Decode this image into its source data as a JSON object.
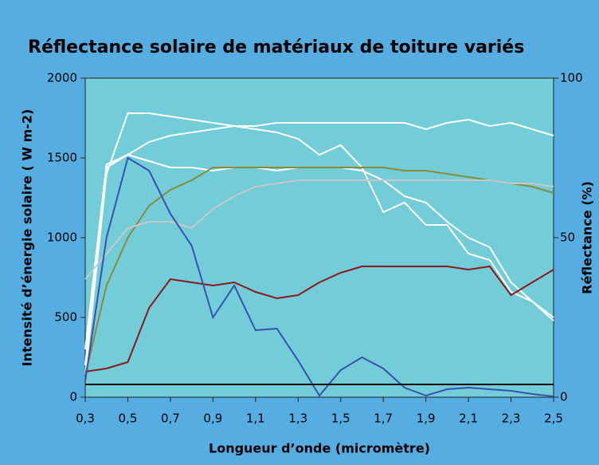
{
  "chart_data": {
    "type": "line",
    "title": "Réflectance solaire de matériaux de toiture variés",
    "ylabel": "Intensité d’énergie solaire  ( W m-2)",
    "y2label": "Réflectance  (%)",
    "xlabel": "Longueur d’onde (micromètre)",
    "x": [
      0.3,
      0.4,
      0.5,
      0.6,
      0.7,
      0.8,
      0.9,
      1.0,
      1.1,
      1.2,
      1.3,
      1.4,
      1.5,
      1.6,
      1.7,
      1.8,
      1.9,
      2.0,
      2.1,
      2.2,
      2.3,
      2.4,
      2.5
    ],
    "xlim": [
      0.3,
      2.5
    ],
    "xticks": [
      {
        "value": 0.3,
        "label": "0,3"
      },
      {
        "value": 0.5,
        "label": "0,5"
      },
      {
        "value": 0.7,
        "label": "0,7"
      },
      {
        "value": 0.9,
        "label": "0,9"
      },
      {
        "value": 1.1,
        "label": "1,1"
      },
      {
        "value": 1.3,
        "label": "1,3"
      },
      {
        "value": 1.5,
        "label": "1,5"
      },
      {
        "value": 1.7,
        "label": "1,7"
      },
      {
        "value": 1.9,
        "label": "1,9"
      },
      {
        "value": 2.1,
        "label": "2,1"
      },
      {
        "value": 2.3,
        "label": "2,3"
      },
      {
        "value": 2.5,
        "label": "2,5"
      }
    ],
    "ylim": [
      0,
      2000
    ],
    "yticks": [
      0,
      500,
      1000,
      1500,
      2000
    ],
    "y2lim": [
      0,
      100
    ],
    "y2ticks": [
      0,
      50,
      100
    ],
    "series": [
      {
        "color": "#ffffff",
        "axis": "y2",
        "values": [
          7,
          70,
          89,
          89,
          88,
          87,
          86,
          85,
          84,
          83,
          81,
          76,
          79,
          72,
          58,
          61,
          54,
          54,
          45,
          43,
          33,
          30,
          24
        ]
      },
      {
        "color": "#ffffff",
        "axis": "y2",
        "values": [
          10,
          72,
          76,
          80,
          82,
          83,
          84,
          85,
          85,
          86,
          86,
          86,
          86,
          86,
          86,
          86,
          84,
          86,
          87,
          85,
          86,
          84,
          82
        ]
      },
      {
        "color": "#ffffff",
        "axis": "y2",
        "values": [
          15,
          73,
          76,
          74,
          72,
          72,
          71,
          72,
          72,
          71,
          72,
          72,
          72,
          71,
          68,
          63,
          61,
          55,
          50,
          47,
          36,
          30,
          25
        ]
      },
      {
        "color": "#8a8a3a",
        "axis": "y2",
        "values": [
          7,
          35,
          50,
          60,
          65,
          68,
          72,
          72,
          72,
          72,
          72,
          72,
          72,
          72,
          72,
          71,
          71,
          70,
          69,
          68,
          67,
          66,
          64
        ]
      },
      {
        "color": "#c8c8c8",
        "axis": "y2",
        "values": [
          37,
          45,
          53,
          55,
          55,
          53,
          59,
          63,
          66,
          67,
          68,
          68,
          68,
          68,
          68,
          68,
          68,
          68,
          68,
          68,
          67,
          67,
          66
        ]
      },
      {
        "color": "#8b1a1a",
        "axis": "y2",
        "values": [
          8,
          9,
          11,
          28,
          37,
          36,
          35,
          36,
          33,
          31,
          32,
          36,
          39,
          41,
          41,
          41,
          41,
          41,
          40,
          41,
          32,
          36,
          40
        ]
      },
      {
        "color": "#3a4fb0",
        "values": [
          100,
          1000,
          1500,
          1420,
          1150,
          950,
          500,
          700,
          420,
          430,
          230,
          10,
          170,
          250,
          180,
          60,
          10,
          50,
          60,
          50,
          40,
          20,
          5
        ]
      },
      {
        "color": "#000000",
        "axis": "y2",
        "values": [
          4,
          4,
          4,
          4,
          4,
          4,
          4,
          4,
          4,
          4,
          4,
          4,
          4,
          4,
          4,
          4,
          4,
          4,
          4,
          4,
          4,
          4,
          4
        ]
      }
    ]
  }
}
